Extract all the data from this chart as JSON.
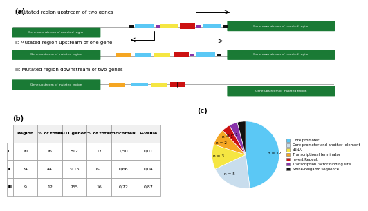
{
  "panel_a_label": "(a)",
  "panel_b_label": "(b)",
  "panel_c_label": "(c)",
  "scenarios": [
    "I: Mutated region upstream of two genes",
    "II: Mutated region upstream of one gene",
    "III: Mutated region downstream of two genes"
  ],
  "gene_color": "#1a7a35",
  "line_color": "#aaaaaa",
  "element_colors": {
    "black_sq": "#111111",
    "blue_rect": "#5bc8f5",
    "yellow_rect": "#f5e642",
    "orange_rect": "#f5a623",
    "red_rect": "#cc1111",
    "purple_sq": "#8833aa"
  },
  "table_headers": [
    "",
    "Region",
    "% of total",
    "PAO1 genome",
    "% of total",
    "Enrichment",
    "P-value"
  ],
  "table_rows": [
    [
      "I",
      "20",
      "26",
      "812",
      "17",
      "1,50",
      "0,01"
    ],
    [
      "II",
      "34",
      "44",
      "3115",
      "67",
      "0,66",
      "0,04"
    ],
    [
      "III",
      "9",
      "12",
      "755",
      "16",
      "0,72",
      "0,87"
    ]
  ],
  "pie_values": [
    12,
    5,
    3,
    2,
    1,
    1,
    1
  ],
  "pie_labels": [
    "n = 12",
    "n = 5",
    "n = 3",
    "n = 2",
    "n = 1",
    "n = 1",
    ""
  ],
  "pie_colors": [
    "#5bc8f5",
    "#c8dded",
    "#f5e642",
    "#f5a623",
    "#cc1111",
    "#8833aa",
    "#111111"
  ],
  "legend_labels": [
    "Core promoter",
    "Core promoter and another  element",
    "sRNA",
    "Transcriptional terminator",
    "Invert Repeat",
    "Transcription factor binding site",
    "Shine-delgamo sequence"
  ],
  "legend_colors": [
    "#5bc8f5",
    "#c8dded",
    "#f5e642",
    "#f5a623",
    "#cc1111",
    "#8833aa",
    "#111111"
  ]
}
